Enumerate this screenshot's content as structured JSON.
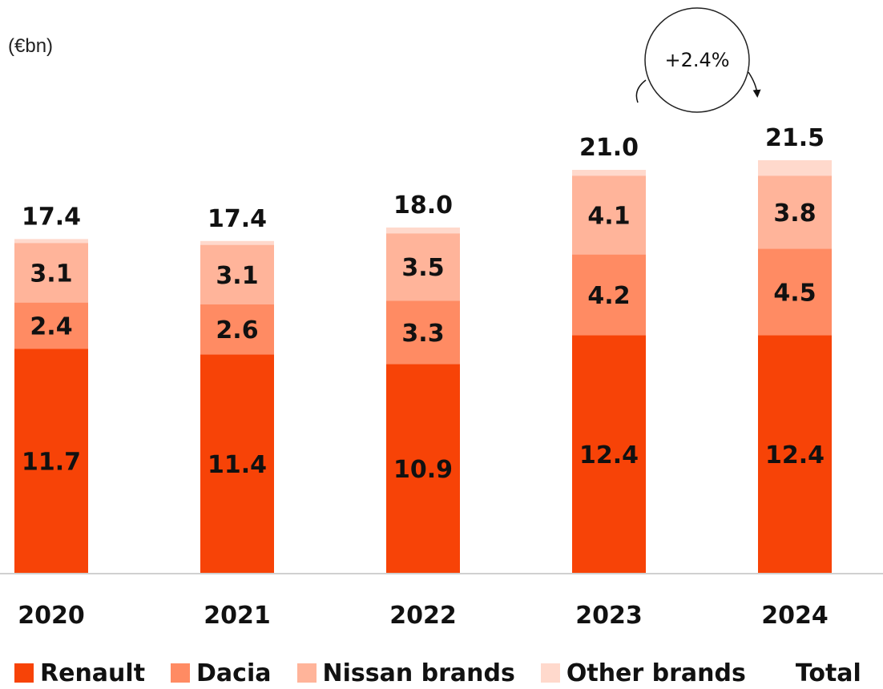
{
  "chart_data": {
    "type": "bar",
    "stacked": true,
    "unit_label": "(€bn)",
    "categories": [
      "2020",
      "2021",
      "2022",
      "2023",
      "2024"
    ],
    "series": [
      {
        "name": "Renault",
        "color": "#F74307",
        "values": [
          11.7,
          11.4,
          10.9,
          12.4,
          12.4
        ]
      },
      {
        "name": "Dacia",
        "color": "#FF8B63",
        "values": [
          2.4,
          2.6,
          3.3,
          4.2,
          4.5
        ]
      },
      {
        "name": "Nissan brands",
        "color": "#FFB49A",
        "values": [
          3.1,
          3.1,
          3.5,
          4.1,
          3.8
        ]
      },
      {
        "name": "Other brands",
        "color": "#FFD9CC",
        "values": [
          0.2,
          0.2,
          0.3,
          0.3,
          0.8
        ]
      }
    ],
    "totals": [
      "17.4",
      "17.4",
      "18.0",
      "21.0",
      "21.5"
    ],
    "total_label": "Total",
    "segment_labels": [
      [
        "11.7",
        "11.4",
        "10.9",
        "12.4",
        "12.4"
      ],
      [
        "2.4",
        "2.6",
        "3.3",
        "4.2",
        "4.5"
      ],
      [
        "3.1",
        "3.1",
        "3.5",
        "4.1",
        "3.8"
      ]
    ],
    "growth": {
      "label": "+2.4%",
      "from": "2023",
      "to": "2024"
    },
    "legend_position": "bottom",
    "grid": false
  }
}
